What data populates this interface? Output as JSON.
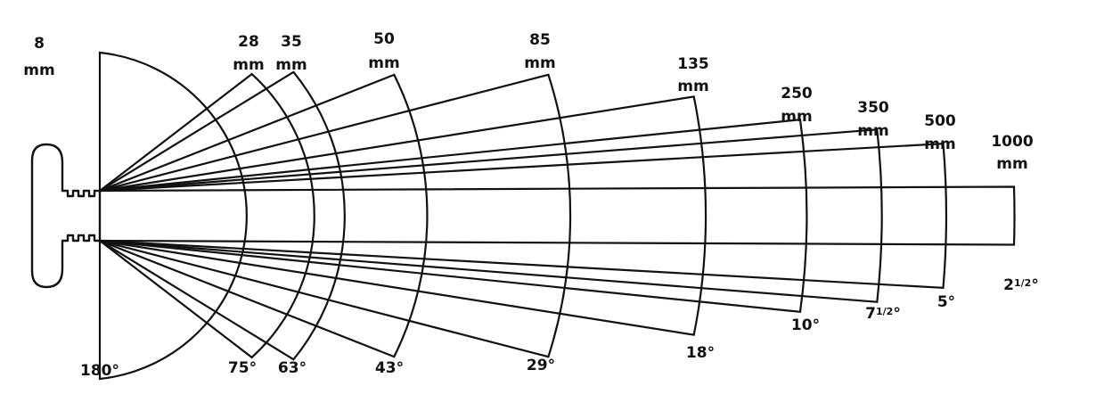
{
  "lenses": [
    {
      "focal": "8",
      "unit": "mm",
      "angle": "180°",
      "angle_deg": 180
    },
    {
      "focal": "28",
      "unit": "mm",
      "angle": "75°",
      "angle_deg": 75
    },
    {
      "focal": "35",
      "unit": "mm",
      "angle": "63°",
      "angle_deg": 63
    },
    {
      "focal": "50",
      "unit": "mm",
      "angle": "43°",
      "angle_deg": 43
    },
    {
      "focal": "85",
      "unit": "mm",
      "angle": "29°",
      "angle_deg": 29
    },
    {
      "focal": "135",
      "unit": "mm",
      "angle": "18°",
      "angle_deg": 18
    },
    {
      "focal": "250",
      "unit": "mm",
      "angle": "10°",
      "angle_deg": 10
    },
    {
      "focal": "350",
      "unit": "mm",
      "angle_whole": "7",
      "angle_frac": "1/2",
      "angle_sym": "°",
      "angle_deg": 7.5
    },
    {
      "focal": "500",
      "unit": "mm",
      "angle": "5°",
      "angle_deg": 5
    },
    {
      "focal": "1000",
      "unit": "mm",
      "angle_whole": "2",
      "angle_frac": "1/2",
      "angle_sym": "°",
      "angle_deg": 2.5
    }
  ]
}
